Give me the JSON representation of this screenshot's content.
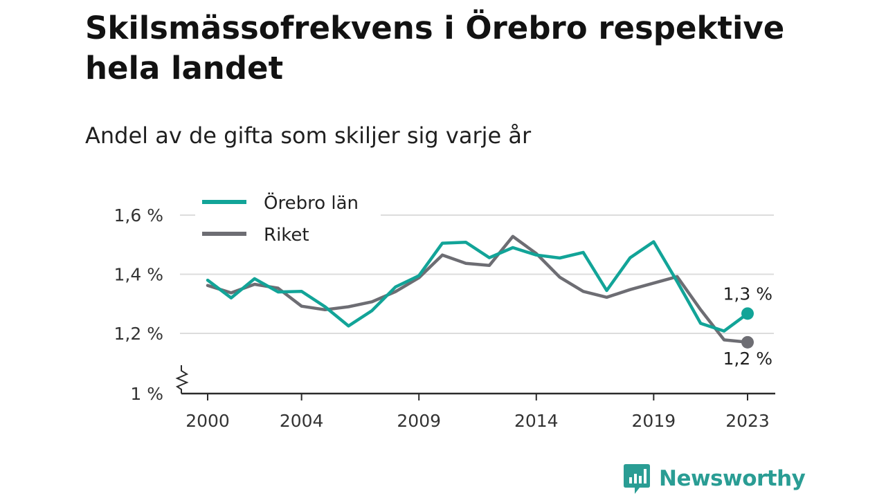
{
  "header": {
    "title": "Skilsmässofrekvens i Örebro respektive hela landet",
    "subtitle": "Andel av de gifta som skiljer sig varje år"
  },
  "brand": {
    "name": "Newsworthy",
    "icon": "newsworthy-logo-icon",
    "color": "#2a9d94"
  },
  "chart_data": {
    "type": "line",
    "title": "Skilsmässofrekvens i Örebro respektive hela landet",
    "subtitle": "Andel av de gifta som skiljer sig varje år",
    "xlabel": "",
    "ylabel": "",
    "x": [
      2000,
      2001,
      2002,
      2003,
      2004,
      2005,
      2006,
      2007,
      2008,
      2009,
      2010,
      2011,
      2012,
      2013,
      2014,
      2015,
      2016,
      2017,
      2018,
      2019,
      2020,
      2021,
      2022,
      2023
    ],
    "x_ticks": [
      2000,
      2004,
      2009,
      2014,
      2019,
      2023
    ],
    "x_tick_labels": [
      "2000",
      "2004",
      "2009",
      "2014",
      "2019",
      "2023"
    ],
    "y_ticks": [
      1.0,
      1.2,
      1.4,
      1.6
    ],
    "y_tick_labels": [
      "1 %",
      "1,2 %",
      "1,4 %",
      "1,6 %"
    ],
    "ylim": [
      1.0,
      1.65
    ],
    "y_axis_break": true,
    "grid": true,
    "legend_position": "top-left",
    "series": [
      {
        "name": "Örebro län",
        "color": "#12a498",
        "values": [
          1.38,
          1.32,
          1.385,
          1.34,
          1.342,
          1.29,
          1.225,
          1.277,
          1.357,
          1.395,
          1.505,
          1.508,
          1.456,
          1.49,
          1.465,
          1.455,
          1.474,
          1.345,
          1.456,
          1.51,
          1.375,
          1.234,
          1.208,
          1.267
        ],
        "end_label": "1,3 %"
      },
      {
        "name": "Riket",
        "color": "#6d6d73",
        "values": [
          1.362,
          1.337,
          1.366,
          1.353,
          1.292,
          1.28,
          1.29,
          1.307,
          1.341,
          1.388,
          1.465,
          1.437,
          1.43,
          1.528,
          1.47,
          1.39,
          1.342,
          1.322,
          1.348,
          1.37,
          1.392,
          1.28,
          1.178,
          1.17
        ],
        "end_label": "1,2 %"
      }
    ]
  }
}
